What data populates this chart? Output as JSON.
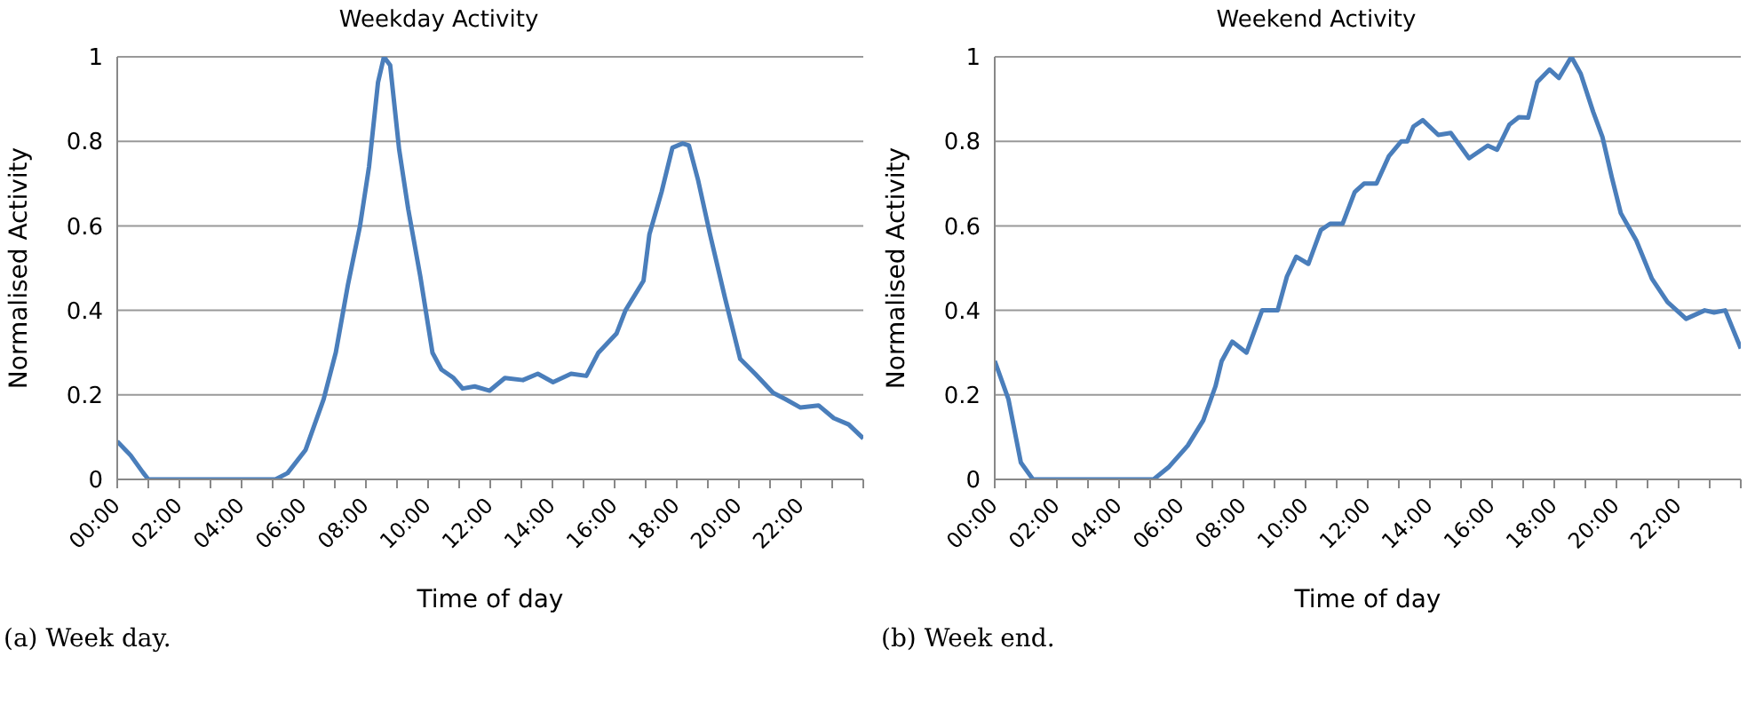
{
  "chart_data": [
    {
      "type": "line",
      "title": "Weekday Activity",
      "xlabel": "Time of day",
      "ylabel": "Normalised Activity",
      "annotations": [
        "(a) Week day."
      ],
      "series": [
        {
          "color": "#4a7ebb",
          "x": [
            0,
            0.43,
            0.82,
            1.0,
            5.09,
            5.48,
            6.06,
            6.64,
            7.03,
            7.42,
            7.81,
            8.1,
            8.39,
            8.58,
            8.78,
            9.07,
            9.36,
            9.75,
            10.14,
            10.43,
            10.82,
            11.11,
            11.5,
            11.98,
            12.47,
            13.05,
            13.53,
            14.02,
            14.6,
            15.09,
            15.48,
            16.06,
            16.35,
            16.93,
            17.12,
            17.51,
            17.86,
            18.19,
            18.39,
            18.68,
            19.07,
            19.55,
            20.04,
            20.52,
            21.1,
            21.49,
            21.98,
            22.56,
            23.05,
            23.53,
            24.0
          ],
          "values": [
            0.09,
            0.057,
            0.017,
            0,
            0,
            0.015,
            0.07,
            0.19,
            0.3,
            0.46,
            0.6,
            0.74,
            0.94,
            1.0,
            0.98,
            0.78,
            0.64,
            0.48,
            0.3,
            0.26,
            0.24,
            0.215,
            0.22,
            0.21,
            0.24,
            0.235,
            0.25,
            0.23,
            0.25,
            0.245,
            0.3,
            0.345,
            0.4,
            0.47,
            0.58,
            0.68,
            0.785,
            0.795,
            0.79,
            0.71,
            0.58,
            0.43,
            0.285,
            0.25,
            0.205,
            0.19,
            0.17,
            0.175,
            0.145,
            0.13,
            0.097
          ]
        }
      ],
      "xlim": [
        0,
        24
      ],
      "xticks": [
        {
          "value": 0,
          "label": "00:00"
        },
        {
          "value": 1,
          "label": null
        },
        {
          "value": 2,
          "label": "02:00"
        },
        {
          "value": 3,
          "label": null
        },
        {
          "value": 4,
          "label": "04:00"
        },
        {
          "value": 5,
          "label": null
        },
        {
          "value": 6,
          "label": "06:00"
        },
        {
          "value": 7,
          "label": null
        },
        {
          "value": 8,
          "label": "08:00"
        },
        {
          "value": 9,
          "label": null
        },
        {
          "value": 10,
          "label": "10:00"
        },
        {
          "value": 11,
          "label": null
        },
        {
          "value": 12,
          "label": "12:00"
        },
        {
          "value": 13,
          "label": null
        },
        {
          "value": 14,
          "label": "14:00"
        },
        {
          "value": 15,
          "label": null
        },
        {
          "value": 16,
          "label": "16:00"
        },
        {
          "value": 17,
          "label": null
        },
        {
          "value": 18,
          "label": "18:00"
        },
        {
          "value": 19,
          "label": null
        },
        {
          "value": 20,
          "label": "20:00"
        },
        {
          "value": 21,
          "label": null
        },
        {
          "value": 22,
          "label": "22:00"
        },
        {
          "value": 23,
          "label": null
        },
        {
          "value": 24,
          "label": null
        }
      ],
      "ylim": [
        0,
        1
      ],
      "yticks": [
        0,
        0.2,
        0.4,
        0.6,
        0.8,
        1
      ],
      "grid": "y",
      "marker": "none",
      "line_style": "solid"
    },
    {
      "type": "line",
      "title": "Weekend Activity",
      "xlabel": "Time of day",
      "ylabel": "Normalised Activity",
      "annotations": [
        "(b) Week end."
      ],
      "series": [
        {
          "color": "#4a7ebb",
          "x": [
            0,
            0.44,
            0.84,
            1.23,
            5.11,
            5.61,
            6.21,
            6.71,
            7.1,
            7.3,
            7.64,
            8.1,
            8.6,
            9.1,
            9.4,
            9.7,
            10.09,
            10.49,
            10.79,
            11.19,
            11.58,
            11.88,
            12.28,
            12.68,
            13.08,
            13.27,
            13.47,
            13.77,
            14.27,
            14.67,
            15.26,
            15.86,
            16.16,
            16.56,
            16.86,
            17.16,
            17.45,
            17.85,
            18.15,
            18.55,
            18.85,
            19.25,
            19.55,
            19.85,
            20.14,
            20.64,
            21.14,
            21.64,
            22.24,
            22.84,
            23.14,
            23.5,
            24.0
          ],
          "values": [
            0.28,
            0.19,
            0.04,
            0,
            0,
            0.03,
            0.08,
            0.14,
            0.22,
            0.28,
            0.326,
            0.3,
            0.4,
            0.4,
            0.48,
            0.527,
            0.51,
            0.59,
            0.605,
            0.605,
            0.68,
            0.7,
            0.7,
            0.765,
            0.8,
            0.8,
            0.835,
            0.85,
            0.815,
            0.82,
            0.76,
            0.79,
            0.78,
            0.84,
            0.857,
            0.856,
            0.94,
            0.97,
            0.95,
            1.0,
            0.96,
            0.87,
            0.81,
            0.715,
            0.63,
            0.565,
            0.475,
            0.42,
            0.38,
            0.4,
            0.395,
            0.4,
            0.31
          ]
        }
      ],
      "xlim": [
        0,
        24
      ],
      "xticks": [
        {
          "value": 0,
          "label": "00:00"
        },
        {
          "value": 1,
          "label": null
        },
        {
          "value": 2,
          "label": "02:00"
        },
        {
          "value": 3,
          "label": null
        },
        {
          "value": 4,
          "label": "04:00"
        },
        {
          "value": 5,
          "label": null
        },
        {
          "value": 6,
          "label": "06:00"
        },
        {
          "value": 7,
          "label": null
        },
        {
          "value": 8,
          "label": "08:00"
        },
        {
          "value": 9,
          "label": null
        },
        {
          "value": 10,
          "label": "10:00"
        },
        {
          "value": 11,
          "label": null
        },
        {
          "value": 12,
          "label": "12:00"
        },
        {
          "value": 13,
          "label": null
        },
        {
          "value": 14,
          "label": "14:00"
        },
        {
          "value": 15,
          "label": null
        },
        {
          "value": 16,
          "label": "16:00"
        },
        {
          "value": 17,
          "label": null
        },
        {
          "value": 18,
          "label": "18:00"
        },
        {
          "value": 19,
          "label": null
        },
        {
          "value": 20,
          "label": "20:00"
        },
        {
          "value": 21,
          "label": null
        },
        {
          "value": 22,
          "label": "22:00"
        },
        {
          "value": 23,
          "label": null
        },
        {
          "value": 24,
          "label": null
        }
      ],
      "ylim": [
        0,
        1
      ],
      "yticks": [
        0,
        0.2,
        0.4,
        0.6,
        0.8,
        1
      ],
      "grid": "y",
      "marker": "none",
      "line_style": "solid"
    }
  ]
}
